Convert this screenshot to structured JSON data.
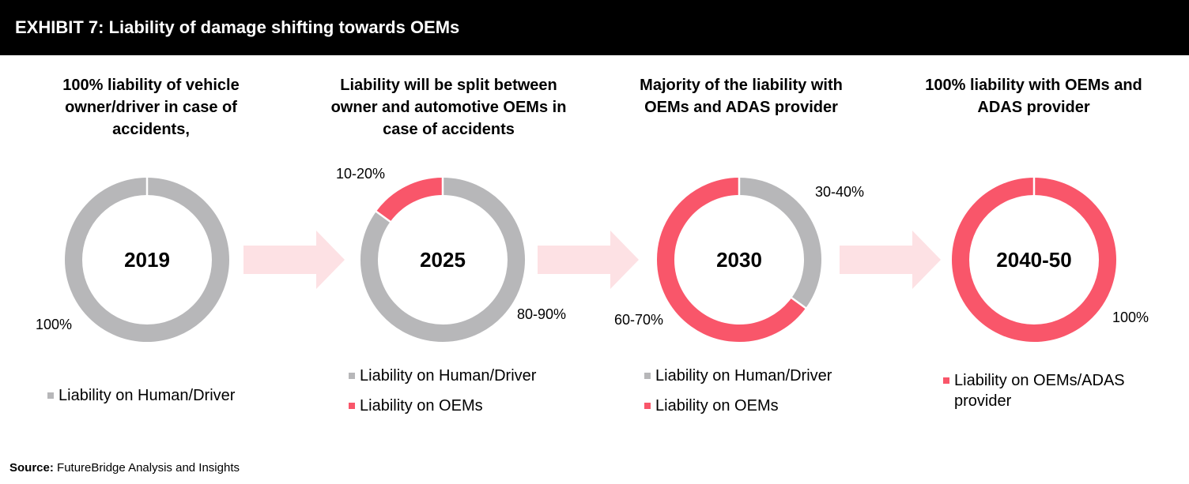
{
  "header": {
    "title": "EXHIBIT 7: Liability of damage shifting towards OEMs"
  },
  "colors": {
    "human": "#b7b7b9",
    "oem": "#f9566a",
    "arrow": "#fde1e4"
  },
  "chart_data": [
    {
      "type": "donut",
      "title": "100% liability of vehicle owner/driver in case of accidents,",
      "center_label": "2019",
      "series": [
        {
          "name": "Liability on Human/Driver",
          "value": 100,
          "label": "100%"
        }
      ],
      "legend": [
        "Liability on Human/Driver"
      ]
    },
    {
      "type": "donut",
      "title": "Liability will be split between owner and automotive OEMs in case of accidents",
      "center_label": "2025",
      "series": [
        {
          "name": "Liability on Human/Driver",
          "value": 85,
          "label": "80-90%"
        },
        {
          "name": "Liability on OEMs",
          "value": 15,
          "label": "10-20%"
        }
      ],
      "legend": [
        "Liability on Human/Driver",
        "Liability on OEMs"
      ]
    },
    {
      "type": "donut",
      "title": "Majority of the liability with OEMs and ADAS provider",
      "center_label": "2030",
      "series": [
        {
          "name": "Liability on Human/Driver",
          "value": 35,
          "label": "30-40%"
        },
        {
          "name": "Liability on OEMs",
          "value": 65,
          "label": "60-70%"
        }
      ],
      "legend": [
        "Liability on Human/Driver",
        "Liability on OEMs"
      ]
    },
    {
      "type": "donut",
      "title": "100% liability with OEMs and ADAS provider",
      "center_label": "2040-50",
      "series": [
        {
          "name": "Liability on OEMs/ADAS provider",
          "value": 100,
          "label": "100%"
        }
      ],
      "legend": [
        "Liability on OEMs/ADAS provider"
      ]
    }
  ],
  "source": {
    "label": "Source:",
    "text": "FutureBridge Analysis and Insights"
  }
}
